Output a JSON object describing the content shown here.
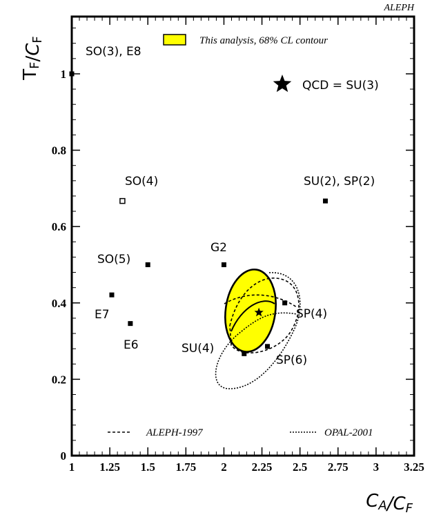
{
  "chart_data": {
    "type": "scatter",
    "corner_label": "ALEPH",
    "xlabel": "C_A/C_F",
    "ylabel": "T_F/C_F",
    "xlim": [
      1,
      3.25
    ],
    "ylim": [
      0,
      1.15
    ],
    "x_ticks": [
      {
        "value": 1,
        "label": "1"
      },
      {
        "value": 1.25,
        "label": "1.25"
      },
      {
        "value": 1.5,
        "label": "1.5"
      },
      {
        "value": 1.75,
        "label": "1.75"
      },
      {
        "value": 2,
        "label": "2"
      },
      {
        "value": 2.25,
        "label": "2.25"
      },
      {
        "value": 2.5,
        "label": "2.5"
      },
      {
        "value": 2.75,
        "label": "2.75"
      },
      {
        "value": 3,
        "label": "3"
      },
      {
        "value": 3.25,
        "label": "3.25"
      }
    ],
    "y_ticks": [
      {
        "value": 0,
        "label": "0"
      },
      {
        "value": 0.2,
        "label": "0.2"
      },
      {
        "value": 0.4,
        "label": "0.4"
      },
      {
        "value": 0.6,
        "label": "0.6"
      },
      {
        "value": 0.8,
        "label": "0.8"
      },
      {
        "value": 1,
        "label": "1"
      }
    ],
    "points": [
      {
        "name": "SO(3), E8",
        "x": 1.0,
        "y": 1.0,
        "marker": "square"
      },
      {
        "name": "SO(4)",
        "x": 1.333,
        "y": 0.667,
        "marker": "open-square"
      },
      {
        "name": "SU(2), SP(2)",
        "x": 2.667,
        "y": 0.667,
        "marker": "square"
      },
      {
        "name": "SO(5)",
        "x": 1.5,
        "y": 0.5,
        "marker": "square"
      },
      {
        "name": "G2",
        "x": 2.0,
        "y": 0.5,
        "marker": "square"
      },
      {
        "name": "E7",
        "x": 1.263,
        "y": 0.421,
        "marker": "square"
      },
      {
        "name": "E6",
        "x": 1.385,
        "y": 0.346,
        "marker": "square"
      },
      {
        "name": "SU(4)",
        "x": 2.133,
        "y": 0.267,
        "marker": "square"
      },
      {
        "name": "SP(4)",
        "x": 2.4,
        "y": 0.4,
        "marker": "square"
      },
      {
        "name": "SP(6)",
        "x": 2.286,
        "y": 0.286,
        "marker": "square"
      },
      {
        "name": "QCD = SU(3)",
        "x": 2.25,
        "y": 0.375,
        "marker": "star"
      }
    ],
    "measurement": {
      "x": 2.23,
      "y": 0.375,
      "marker": "star"
    },
    "legend": {
      "contour": "This analysis, 68% CL contour",
      "aleph": "ALEPH-1997",
      "opal": "OPAL-2001"
    },
    "colors": {
      "contour_fill": "#ffff00",
      "ink": "#000000"
    }
  }
}
